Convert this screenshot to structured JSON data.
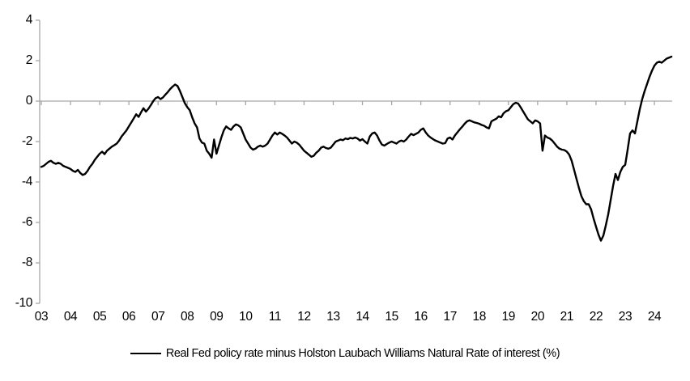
{
  "chart_data": {
    "type": "line",
    "title": "",
    "xlabel": "",
    "ylabel": "",
    "ylim": [
      -10,
      4
    ],
    "y_ticks": [
      4,
      2,
      0,
      -2,
      -4,
      -6,
      -8,
      -10
    ],
    "x_tick_labels": [
      "03",
      "04",
      "05",
      "06",
      "07",
      "08",
      "09",
      "10",
      "11",
      "12",
      "13",
      "14",
      "15",
      "16",
      "17",
      "18",
      "19",
      "20",
      "21",
      "22",
      "23",
      "24"
    ],
    "x_start_year": 2003,
    "x_step_months": 1,
    "grid": false,
    "legend_position": "bottom",
    "axis_color": "#a6a6a6",
    "line_color": "#000000",
    "series": [
      {
        "name": "Real Fed policy rate minus Holston Laubach Williams Natural Rate of interest (%)",
        "color": "#000000",
        "values": [
          -3.25,
          -3.2,
          -3.1,
          -3.0,
          -2.95,
          -3.05,
          -3.1,
          -3.05,
          -3.1,
          -3.2,
          -3.25,
          -3.3,
          -3.35,
          -3.45,
          -3.5,
          -3.4,
          -3.55,
          -3.65,
          -3.6,
          -3.45,
          -3.25,
          -3.1,
          -2.9,
          -2.75,
          -2.6,
          -2.5,
          -2.62,
          -2.45,
          -2.35,
          -2.25,
          -2.18,
          -2.1,
          -1.95,
          -1.75,
          -1.6,
          -1.45,
          -1.25,
          -1.05,
          -0.85,
          -0.65,
          -0.78,
          -0.55,
          -0.35,
          -0.52,
          -0.38,
          -0.2,
          0.0,
          0.15,
          0.2,
          0.1,
          0.18,
          0.32,
          0.45,
          0.6,
          0.72,
          0.82,
          0.75,
          0.5,
          0.2,
          -0.1,
          -0.3,
          -0.45,
          -0.8,
          -1.1,
          -1.3,
          -1.85,
          -2.05,
          -2.1,
          -2.45,
          -2.6,
          -2.8,
          -1.9,
          -2.6,
          -2.2,
          -1.8,
          -1.45,
          -1.25,
          -1.35,
          -1.42,
          -1.25,
          -1.15,
          -1.2,
          -1.3,
          -1.6,
          -1.9,
          -2.1,
          -2.3,
          -2.4,
          -2.35,
          -2.25,
          -2.2,
          -2.25,
          -2.2,
          -2.1,
          -1.9,
          -1.7,
          -1.55,
          -1.65,
          -1.55,
          -1.62,
          -1.7,
          -1.8,
          -1.95,
          -2.1,
          -2.0,
          -2.05,
          -2.15,
          -2.3,
          -2.45,
          -2.55,
          -2.65,
          -2.75,
          -2.7,
          -2.55,
          -2.45,
          -2.3,
          -2.25,
          -2.32,
          -2.35,
          -2.3,
          -2.15,
          -2.0,
          -1.95,
          -1.9,
          -1.93,
          -1.85,
          -1.88,
          -1.82,
          -1.85,
          -1.8,
          -1.85,
          -1.95,
          -1.88,
          -2.0,
          -2.1,
          -1.75,
          -1.6,
          -1.55,
          -1.7,
          -1.95,
          -2.15,
          -2.2,
          -2.12,
          -2.05,
          -2.0,
          -2.05,
          -2.1,
          -2.0,
          -1.95,
          -2.0,
          -1.9,
          -1.75,
          -1.62,
          -1.68,
          -1.62,
          -1.55,
          -1.42,
          -1.35,
          -1.55,
          -1.7,
          -1.8,
          -1.88,
          -1.95,
          -2.0,
          -2.05,
          -2.1,
          -2.08,
          -1.85,
          -1.8,
          -1.9,
          -1.7,
          -1.55,
          -1.4,
          -1.27,
          -1.12,
          -1.0,
          -0.95,
          -1.0,
          -1.05,
          -1.08,
          -1.12,
          -1.18,
          -1.22,
          -1.3,
          -1.35,
          -1.0,
          -0.93,
          -0.87,
          -0.75,
          -0.8,
          -0.6,
          -0.5,
          -0.45,
          -0.3,
          -0.15,
          -0.08,
          -0.12,
          -0.3,
          -0.5,
          -0.7,
          -0.9,
          -1.0,
          -1.1,
          -0.95,
          -1.0,
          -1.1,
          -2.45,
          -1.7,
          -1.8,
          -1.85,
          -1.95,
          -2.1,
          -2.25,
          -2.35,
          -2.4,
          -2.42,
          -2.5,
          -2.65,
          -2.95,
          -3.4,
          -3.85,
          -4.3,
          -4.7,
          -4.95,
          -5.1,
          -5.1,
          -5.35,
          -5.8,
          -6.2,
          -6.6,
          -6.9,
          -6.65,
          -6.15,
          -5.6,
          -4.9,
          -4.2,
          -3.6,
          -3.9,
          -3.5,
          -3.25,
          -3.15,
          -2.4,
          -1.6,
          -1.45,
          -1.6,
          -1.0,
          -0.4,
          0.1,
          0.5,
          0.85,
          1.2,
          1.5,
          1.75,
          1.9,
          1.95,
          1.9,
          2.0,
          2.1,
          2.15,
          2.2
        ]
      }
    ]
  },
  "legend": {
    "label": "Real Fed policy rate minus Holston Laubach Williams Natural Rate of interest (%)"
  }
}
